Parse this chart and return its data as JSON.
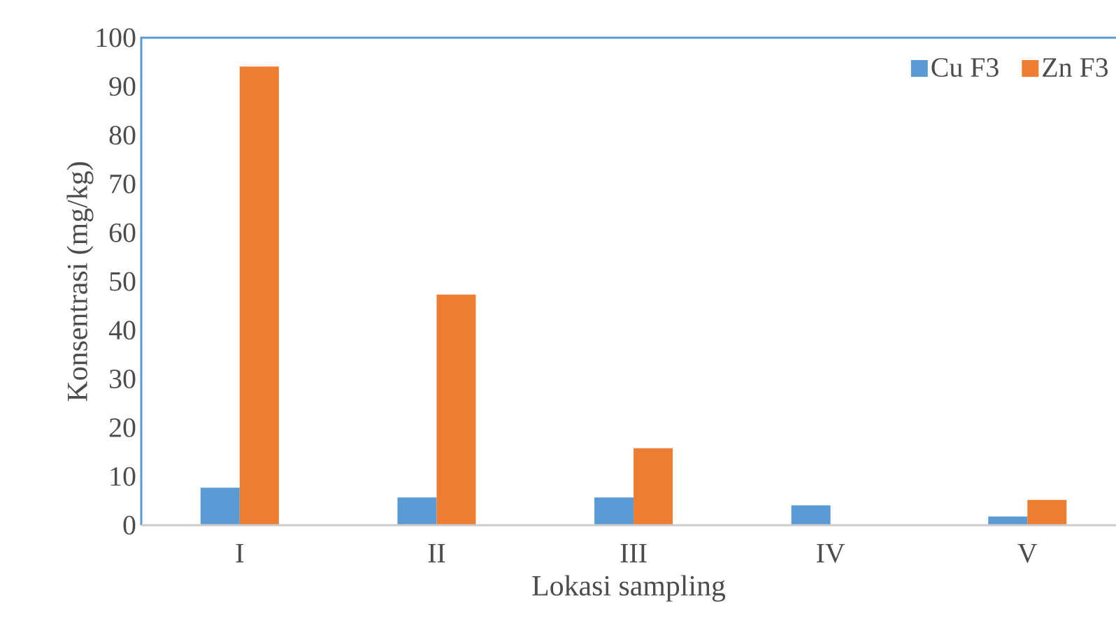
{
  "chart_data": {
    "type": "bar",
    "xlabel": "Lokasi sampling",
    "ylabel": "Konsentrasi (mg/kg)",
    "categories": [
      "I",
      "II",
      "III",
      "IV",
      "V"
    ],
    "series": [
      {
        "name": "Cu F3",
        "color": "#5b9bd5",
        "values": [
          7.7,
          5.7,
          5.7,
          4.1,
          1.8
        ]
      },
      {
        "name": "Zn F3",
        "color": "#ed7d31",
        "values": [
          94.1,
          47.3,
          15.8,
          0,
          5.2
        ]
      }
    ],
    "ylim": [
      0,
      100
    ],
    "yticks": [
      0,
      10,
      20,
      30,
      40,
      50,
      60,
      70,
      80,
      90,
      100
    ],
    "legend": "top right"
  }
}
